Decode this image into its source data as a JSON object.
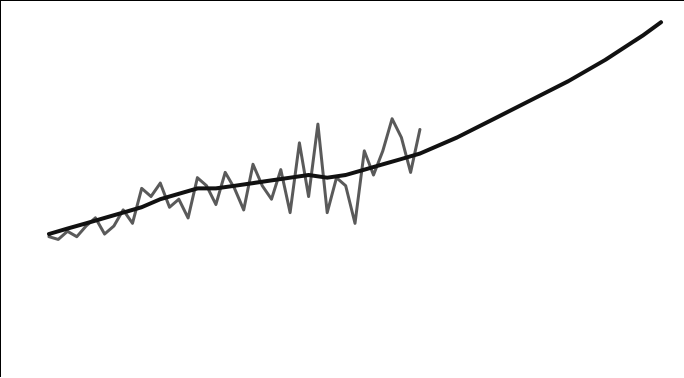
{
  "chart_data": {
    "type": "line",
    "title": "",
    "xlabel": "",
    "ylabel": "",
    "xlim": [
      0,
      66
    ],
    "ylim": [
      0,
      100
    ],
    "grid": false,
    "legend": "none",
    "series": [
      {
        "color": "#5a5a5a",
        "x": [
          0,
          1,
          2,
          3,
          4,
          5,
          6,
          7,
          8,
          9,
          10,
          11,
          12,
          13,
          14,
          15,
          16,
          17,
          18,
          19,
          20,
          21,
          22,
          23,
          24,
          25,
          26,
          27,
          28,
          29,
          30,
          31,
          32,
          33,
          34,
          35,
          36,
          37,
          38,
          39,
          40
        ],
        "y": [
          24,
          23,
          26,
          24,
          28,
          31,
          25,
          28,
          34,
          29,
          42,
          39,
          44,
          35,
          38,
          31,
          46,
          43,
          36,
          48,
          42,
          34,
          51,
          43,
          38,
          49,
          33,
          59,
          39,
          66,
          33,
          46,
          43,
          29,
          56,
          47,
          56,
          68,
          61,
          48,
          64
        ]
      },
      {
        "color": "#111111",
        "x": [
          0,
          2,
          4,
          6,
          8,
          10,
          12,
          14,
          16,
          18,
          20,
          22,
          24,
          26,
          28,
          30,
          32,
          34,
          36,
          38,
          40,
          44,
          48,
          52,
          56,
          60,
          64,
          66
        ],
        "y": [
          25,
          27,
          29,
          31,
          33,
          35,
          38,
          40,
          42,
          42,
          43,
          44,
          45,
          46,
          47,
          46,
          47,
          49,
          51,
          53,
          55,
          61,
          68,
          75,
          82,
          90,
          99,
          104
        ]
      }
    ]
  }
}
